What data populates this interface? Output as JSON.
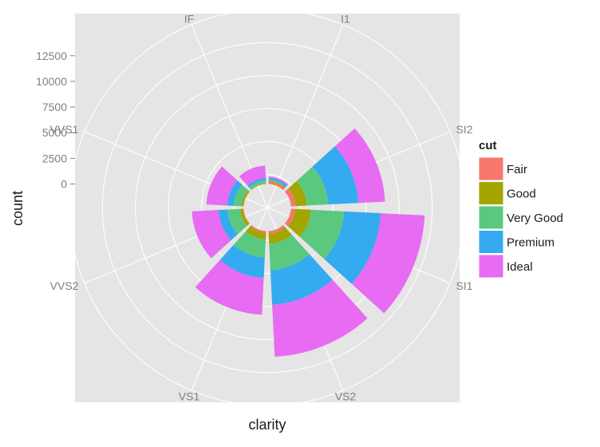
{
  "chart_data": {
    "type": "polar-stacked-bar",
    "xlabel": "clarity",
    "ylabel": "count",
    "categories": [
      "I1",
      "SI2",
      "SI1",
      "VS2",
      "VS1",
      "VVS2",
      "VVS1",
      "IF"
    ],
    "y_ticks": [
      "0",
      "2500",
      "5000",
      "7500",
      "10000",
      "12500"
    ],
    "y_tick_values": [
      0,
      2500,
      5000,
      7500,
      10000,
      12500
    ],
    "ylim": [
      -2300,
      17000
    ],
    "legend": {
      "title": "cut",
      "position": "right"
    },
    "grid": true,
    "background": "#e5e5e5",
    "series": [
      {
        "name": "Fair",
        "color": "#f8766d",
        "values": [
          210,
          466,
          408,
          261,
          170,
          69,
          17,
          9
        ]
      },
      {
        "name": "Good",
        "color": "#a3a500",
        "values": [
          96,
          1081,
          1560,
          978,
          648,
          286,
          186,
          71
        ]
      },
      {
        "name": "Very Good",
        "color": "#5ac97f",
        "values": [
          84,
          2100,
          3240,
          2591,
          1775,
          1235,
          789,
          268
        ]
      },
      {
        "name": "Premium",
        "color": "#34aaf0",
        "values": [
          205,
          2949,
          3575,
          3357,
          1989,
          870,
          616,
          230
        ]
      },
      {
        "name": "Ideal",
        "color": "#e76bf3",
        "values": [
          146,
          2598,
          4282,
          5071,
          3589,
          2606,
          2047,
          1212
        ]
      }
    ]
  }
}
